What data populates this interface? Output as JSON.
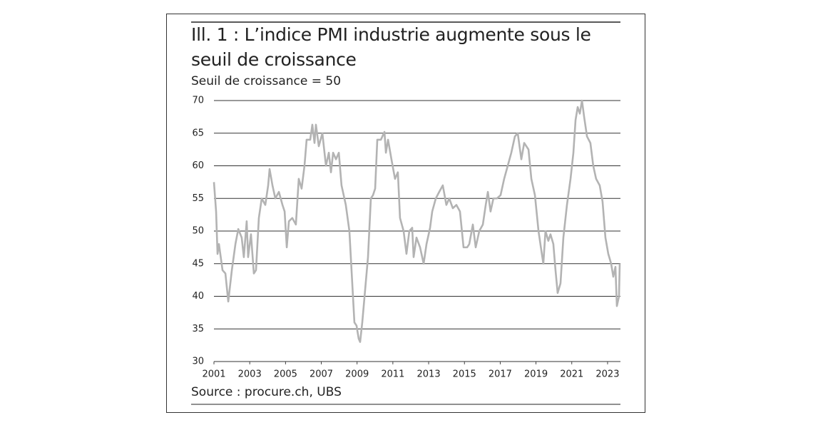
{
  "chart_data": {
    "type": "line",
    "title": "Ill. 1 : L’indice PMI industrie augmente sous le seuil de croissance",
    "subtitle": "Seuil de croissance = 50",
    "source": "Source : procure.ch, UBS",
    "x": [
      2001.0,
      2001.12,
      2001.2,
      2001.28,
      2001.48,
      2001.64,
      2001.8,
      2002.0,
      2002.2,
      2002.36,
      2002.55,
      2002.67,
      2002.83,
      2002.91,
      2003.07,
      2003.23,
      2003.35,
      2003.51,
      2003.67,
      2003.87,
      2004.03,
      2004.11,
      2004.27,
      2004.43,
      2004.63,
      2004.83,
      2004.95,
      2005.07,
      2005.19,
      2005.38,
      2005.58,
      2005.74,
      2005.9,
      2006.06,
      2006.18,
      2006.38,
      2006.5,
      2006.62,
      2006.7,
      2006.86,
      2007.06,
      2007.26,
      2007.42,
      2007.54,
      2007.66,
      2007.82,
      2007.98,
      2008.13,
      2008.37,
      2008.57,
      2008.73,
      2008.85,
      2008.97,
      2009.09,
      2009.17,
      2009.29,
      2009.45,
      2009.61,
      2009.77,
      2009.89,
      2010.01,
      2010.13,
      2010.33,
      2010.53,
      2010.61,
      2010.73,
      2010.92,
      2011.12,
      2011.28,
      2011.4,
      2011.6,
      2011.76,
      2011.92,
      2012.08,
      2012.16,
      2012.32,
      2012.52,
      2012.72,
      2012.88,
      2013.08,
      2013.2,
      2013.4,
      2013.59,
      2013.79,
      2013.99,
      2014.15,
      2014.35,
      2014.55,
      2014.75,
      2014.95,
      2015.15,
      2015.27,
      2015.47,
      2015.63,
      2015.83,
      2016.03,
      2016.19,
      2016.31,
      2016.46,
      2016.62,
      2016.82,
      2017.02,
      2017.22,
      2017.42,
      2017.62,
      2017.82,
      2017.98,
      2018.18,
      2018.34,
      2018.58,
      2018.74,
      2018.94,
      2019.14,
      2019.3,
      2019.41,
      2019.53,
      2019.69,
      2019.81,
      2019.97,
      2020.09,
      2020.21,
      2020.37,
      2020.53,
      2020.73,
      2020.93,
      2021.09,
      2021.21,
      2021.33,
      2021.45,
      2021.57,
      2021.69,
      2021.85,
      2022.04,
      2022.2,
      2022.36,
      2022.56,
      2022.72,
      2022.88,
      2023.04,
      2023.2,
      2023.32,
      2023.44,
      2023.52,
      2023.64,
      2023.68
    ],
    "series": [
      {
        "color": "#b3b3b3",
        "values": [
          57.5,
          53,
          46.5,
          48,
          44,
          43.5,
          39.2,
          44,
          48,
          50.3,
          49,
          46,
          51.5,
          46,
          49.5,
          43.5,
          44,
          52,
          55,
          54,
          57,
          59.5,
          57,
          55,
          56,
          54,
          53,
          47.5,
          51.5,
          52,
          51,
          58,
          56.5,
          60,
          64,
          64,
          66.3,
          63.5,
          66.3,
          63,
          65,
          60,
          62,
          59,
          62,
          61,
          62,
          57,
          54,
          50,
          42,
          36,
          35.5,
          33.5,
          33,
          36,
          41,
          46,
          55,
          55.5,
          56.5,
          64,
          64,
          65.2,
          62,
          64,
          61,
          58,
          59,
          52,
          50,
          46.5,
          50,
          50.5,
          46,
          49,
          47.5,
          45,
          48,
          50.5,
          53,
          55,
          56,
          57,
          54,
          55,
          53.5,
          54,
          53,
          47.5,
          47.5,
          48,
          51,
          47.5,
          50,
          51,
          54,
          56,
          53,
          55,
          55,
          55.5,
          58,
          60,
          62,
          64.5,
          65,
          61,
          63.5,
          62.5,
          58,
          55.5,
          50,
          47,
          45,
          50,
          48.5,
          49.5,
          48,
          44,
          40.5,
          42,
          49,
          54,
          58,
          62,
          67,
          69,
          68,
          70,
          67.5,
          64.5,
          63.5,
          60,
          58,
          57,
          54.5,
          49,
          46.5,
          45,
          43,
          44.5,
          38.5,
          40,
          45
        ]
      }
    ],
    "xlim": [
      2001,
      2023.72
    ],
    "ylim": [
      30,
      70
    ],
    "xticks": [
      2001,
      2003,
      2005,
      2007,
      2009,
      2011,
      2013,
      2015,
      2017,
      2019,
      2021,
      2023
    ],
    "yticks": [
      30,
      35,
      40,
      45,
      50,
      55,
      60,
      65,
      70
    ],
    "grid": true
  }
}
